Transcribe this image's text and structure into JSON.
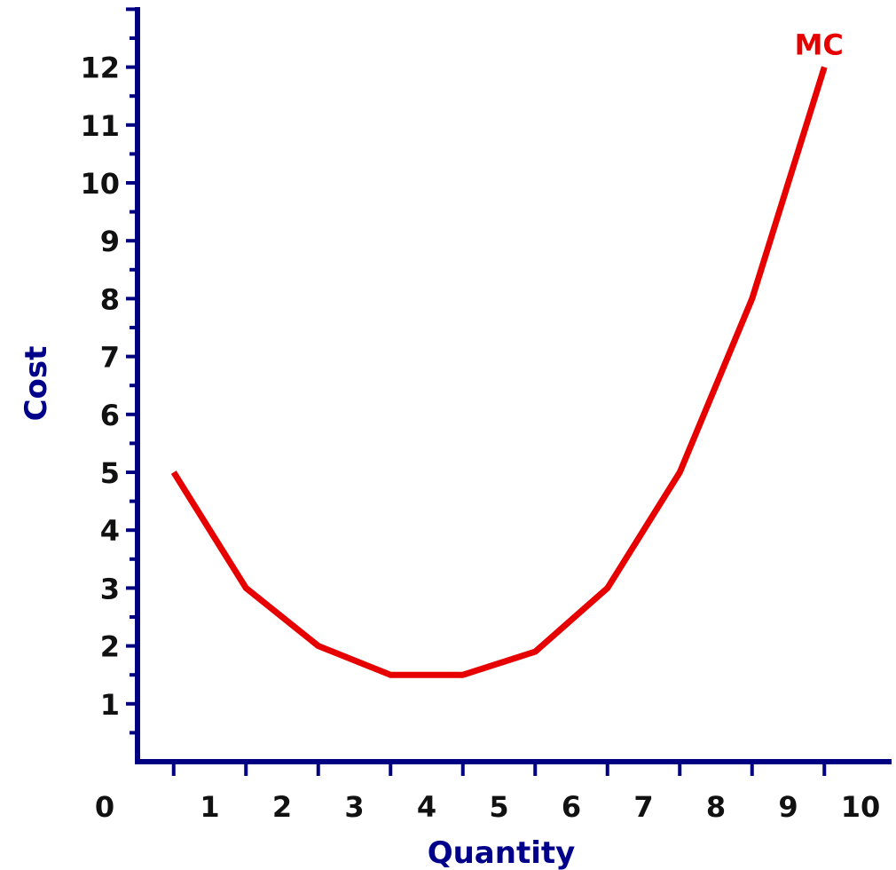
{
  "chart_data": {
    "type": "line",
    "title": "",
    "xlabel": "Quantity",
    "ylabel": "Cost",
    "xlim": [
      0,
      10
    ],
    "ylim": [
      0,
      13
    ],
    "x_ticks": [
      "0",
      "1",
      "2",
      "3",
      "4",
      "5",
      "6",
      "7",
      "8",
      "9",
      "10"
    ],
    "y_ticks": [
      "1",
      "2",
      "3",
      "4",
      "5",
      "6",
      "7",
      "8",
      "9",
      "10",
      "11",
      "12"
    ],
    "series": [
      {
        "name": "MC",
        "x": [
          0.5,
          1.5,
          2.5,
          3.5,
          4.5,
          5.5,
          6.5,
          7.5,
          8.5,
          9.5
        ],
        "y": [
          5,
          3,
          2,
          1.5,
          1.5,
          1.9,
          3,
          5,
          8,
          12
        ]
      }
    ],
    "grid": false,
    "legend": "none",
    "colors": {
      "axis": "#000080",
      "axis_title": "#00008b",
      "line": "#e60000",
      "tick_label": "#111111"
    }
  }
}
